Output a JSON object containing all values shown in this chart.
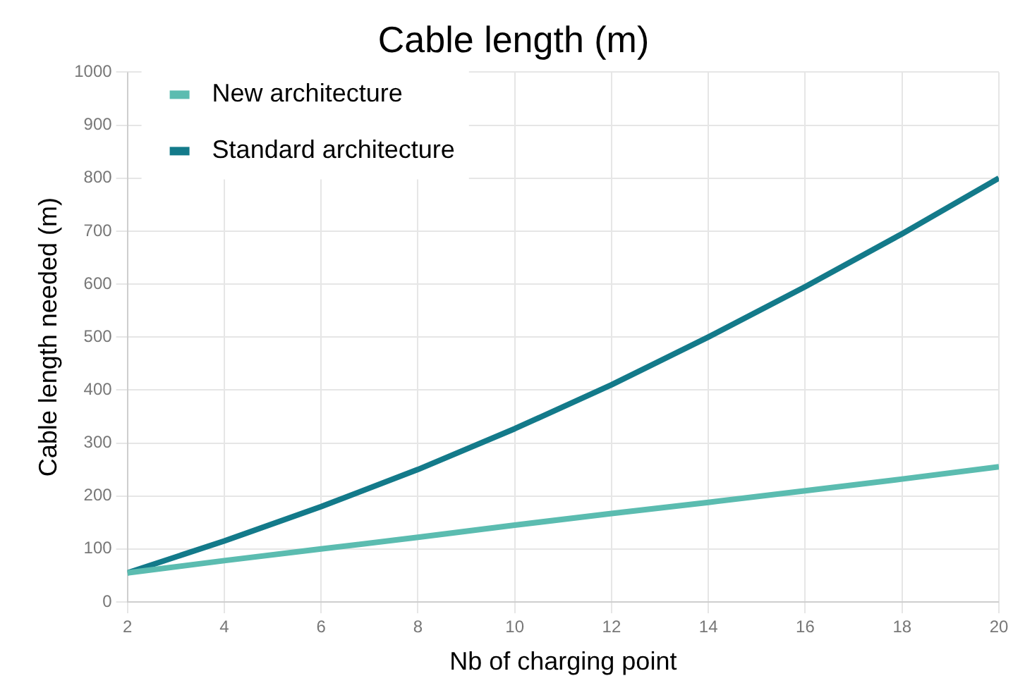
{
  "chart_data": {
    "type": "line",
    "title": "Cable length (m)",
    "xlabel": "Nb of charging point",
    "ylabel": "Cable length needed (m)",
    "x": [
      2,
      4,
      6,
      8,
      10,
      12,
      14,
      16,
      18,
      20
    ],
    "series": [
      {
        "name": "New architecture",
        "color": "#5bbcb0",
        "values": [
          55,
          78,
          100,
          122,
          145,
          167,
          188,
          210,
          232,
          255
        ]
      },
      {
        "name": "Standard architecture",
        "color": "#137a8a",
        "values": [
          55,
          115,
          180,
          250,
          327,
          410,
          500,
          595,
          695,
          800
        ]
      }
    ],
    "xlim": [
      2,
      20
    ],
    "xticks": [
      2,
      4,
      6,
      8,
      10,
      12,
      14,
      16,
      18,
      20
    ],
    "ylim": [
      0,
      1000
    ],
    "yticks": [
      0,
      100,
      200,
      300,
      400,
      500,
      600,
      700,
      800,
      900,
      1000
    ],
    "grid": true,
    "legend": "top left",
    "marker": "none",
    "line_style": "solid"
  }
}
